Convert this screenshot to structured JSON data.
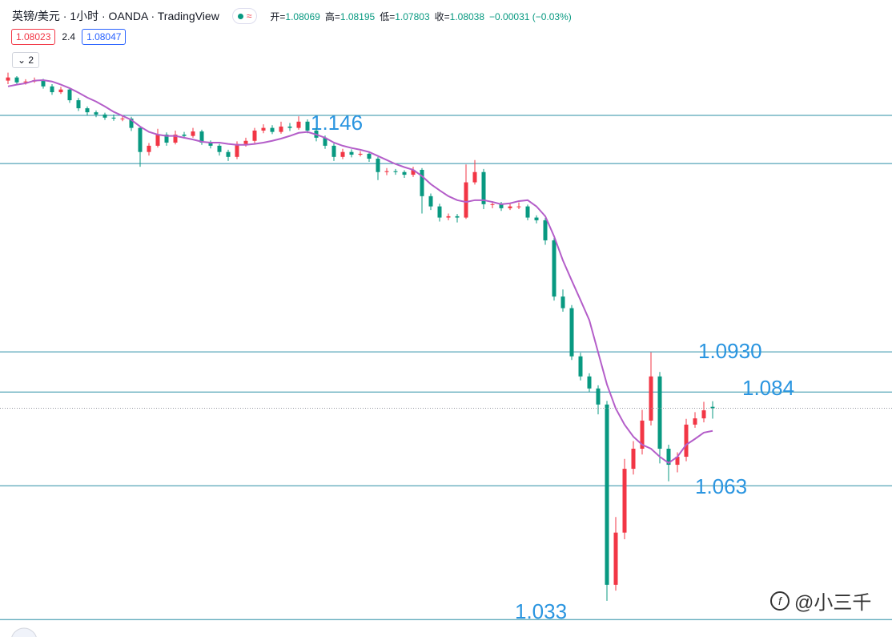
{
  "header": {
    "symbol": "英镑/美元 · 1小时 · OANDA · TradingView",
    "ohlc": [
      {
        "label": "开=",
        "value": "1.08069"
      },
      {
        "label": "高=",
        "value": "1.08195"
      },
      {
        "label": "低=",
        "value": "1.07803"
      },
      {
        "label": "收=",
        "value": "1.08038"
      }
    ],
    "change": "−0.00031 (−0.03%)",
    "bid": "1.08023",
    "spread": "2.4",
    "ask": "1.08047",
    "collapse_count": "2"
  },
  "watermark": "@小三千",
  "chart_data": {
    "type": "candlestick",
    "up_color": "#f23645",
    "down_color": "#089981",
    "ylim": [
      1.0291,
      1.1566
    ],
    "ohlc": [
      [
        1.1538,
        1.1556,
        1.153,
        1.1545
      ],
      [
        1.1545,
        1.1548,
        1.1528,
        1.1534
      ],
      [
        1.1534,
        1.1541,
        1.1529,
        1.1536
      ],
      [
        1.1536,
        1.1545,
        1.1533,
        1.1539
      ],
      [
        1.1539,
        1.1542,
        1.152,
        1.1525
      ],
      [
        1.1525,
        1.153,
        1.1506,
        1.1512
      ],
      [
        1.1512,
        1.1524,
        1.1508,
        1.1518
      ],
      [
        1.1518,
        1.1521,
        1.1488,
        1.1494
      ],
      [
        1.1494,
        1.1499,
        1.147,
        1.1476
      ],
      [
        1.1476,
        1.148,
        1.146,
        1.1467
      ],
      [
        1.1467,
        1.1471,
        1.1456,
        1.1462
      ],
      [
        1.1462,
        1.1466,
        1.145,
        1.1455
      ],
      [
        1.1455,
        1.1462,
        1.1448,
        1.1453
      ],
      [
        1.1453,
        1.146,
        1.1447,
        1.1453
      ],
      [
        1.1453,
        1.1457,
        1.1425,
        1.1432
      ],
      [
        1.1432,
        1.1436,
        1.1345,
        1.1378
      ],
      [
        1.1378,
        1.1398,
        1.137,
        1.1392
      ],
      [
        1.1392,
        1.143,
        1.1388,
        1.1417
      ],
      [
        1.1417,
        1.1422,
        1.1392,
        1.1399
      ],
      [
        1.1399,
        1.1426,
        1.1395,
        1.1417
      ],
      [
        1.1417,
        1.1423,
        1.1408,
        1.1414
      ],
      [
        1.1414,
        1.1432,
        1.141,
        1.1424
      ],
      [
        1.1424,
        1.1428,
        1.1394,
        1.1399
      ],
      [
        1.1399,
        1.1404,
        1.1386,
        1.1392
      ],
      [
        1.1392,
        1.1396,
        1.137,
        1.1378
      ],
      [
        1.1378,
        1.1383,
        1.1358,
        1.1367
      ],
      [
        1.1367,
        1.1402,
        1.1362,
        1.1396
      ],
      [
        1.1396,
        1.141,
        1.139,
        1.1403
      ],
      [
        1.1403,
        1.1432,
        1.1398,
        1.1426
      ],
      [
        1.1426,
        1.144,
        1.142,
        1.1432
      ],
      [
        1.1432,
        1.1438,
        1.1418,
        1.1423
      ],
      [
        1.1423,
        1.1446,
        1.1419,
        1.1435
      ],
      [
        1.1435,
        1.1443,
        1.1425,
        1.1432
      ],
      [
        1.1432,
        1.1458,
        1.1428,
        1.1446
      ],
      [
        1.1446,
        1.1451,
        1.142,
        1.1426
      ],
      [
        1.1426,
        1.1432,
        1.1402,
        1.141
      ],
      [
        1.141,
        1.1415,
        1.1385,
        1.1392
      ],
      [
        1.1392,
        1.1397,
        1.1358,
        1.1367
      ],
      [
        1.1367,
        1.1385,
        1.1362,
        1.1378
      ],
      [
        1.1378,
        1.1384,
        1.1366,
        1.1372
      ],
      [
        1.1372,
        1.138,
        1.1368,
        1.1374
      ],
      [
        1.1374,
        1.1378,
        1.1356,
        1.1363
      ],
      [
        1.1363,
        1.1367,
        1.1315,
        1.1333
      ],
      [
        1.1333,
        1.1342,
        1.1326,
        1.1335
      ],
      [
        1.1335,
        1.134,
        1.1327,
        1.1333
      ],
      [
        1.1333,
        1.1337,
        1.132,
        1.1327
      ],
      [
        1.1327,
        1.1345,
        1.1322,
        1.1338
      ],
      [
        1.1338,
        1.1342,
        1.124,
        1.1279
      ],
      [
        1.1279,
        1.1285,
        1.1248,
        1.1256
      ],
      [
        1.1256,
        1.1262,
        1.1222,
        1.1231
      ],
      [
        1.1231,
        1.124,
        1.1225,
        1.1234
      ],
      [
        1.1234,
        1.1239,
        1.122,
        1.1231
      ],
      [
        1.1231,
        1.135,
        1.1228,
        1.131
      ],
      [
        1.131,
        1.136,
        1.1305,
        1.1333
      ],
      [
        1.1333,
        1.134,
        1.125,
        1.1261
      ],
      [
        1.1261,
        1.1268,
        1.1252,
        1.1261
      ],
      [
        1.1261,
        1.1266,
        1.1246,
        1.1252
      ],
      [
        1.1252,
        1.1262,
        1.1248,
        1.1256
      ],
      [
        1.1256,
        1.1265,
        1.125,
        1.1256
      ],
      [
        1.1256,
        1.126,
        1.1225,
        1.1231
      ],
      [
        1.1231,
        1.1236,
        1.1218,
        1.1225
      ],
      [
        1.1225,
        1.123,
        1.117,
        1.118
      ],
      [
        1.118,
        1.1185,
        1.1045,
        1.1054
      ],
      [
        1.1054,
        1.107,
        1.102,
        1.1028
      ],
      [
        1.1028,
        1.1035,
        1.0912,
        1.092
      ],
      [
        1.092,
        1.0928,
        1.0866,
        1.0875
      ],
      [
        1.0875,
        1.0882,
        1.084,
        1.0848
      ],
      [
        1.0848,
        1.0855,
        1.079,
        1.0812
      ],
      [
        1.0812,
        1.082,
        1.0372,
        1.0408
      ],
      [
        1.0408,
        1.056,
        1.0395,
        1.0525
      ],
      [
        1.0525,
        1.069,
        1.051,
        1.0668
      ],
      [
        1.0668,
        1.073,
        1.0655,
        1.0713
      ],
      [
        1.0713,
        1.08,
        1.07,
        1.0776
      ],
      [
        1.0776,
        1.0929,
        1.0765,
        1.0875
      ],
      [
        1.0875,
        1.0885,
        1.068,
        1.0713
      ],
      [
        1.0713,
        1.0722,
        1.064,
        1.0677
      ],
      [
        1.0677,
        1.0705,
        1.066,
        1.0695
      ],
      [
        1.0695,
        1.078,
        1.0685,
        1.0767
      ],
      [
        1.0767,
        1.0795,
        1.076,
        1.0781
      ],
      [
        1.0781,
        1.0818,
        1.0772,
        1.0799
      ],
      [
        1.08069,
        1.08195,
        1.07803,
        1.08038
      ]
    ],
    "ma": {
      "color": "#b45ec9",
      "values": [
        1.1525,
        1.1529,
        1.1532,
        1.1538,
        1.1539,
        1.1536,
        1.1529,
        1.1521,
        1.1511,
        1.15,
        1.1491,
        1.148,
        1.1468,
        1.1459,
        1.145,
        1.1435,
        1.1423,
        1.1417,
        1.1414,
        1.1414,
        1.141,
        1.1406,
        1.1401,
        1.1399,
        1.1399,
        1.1396,
        1.1394,
        1.1394,
        1.1396,
        1.1399,
        1.1403,
        1.1408,
        1.1414,
        1.1421,
        1.1423,
        1.1417,
        1.141,
        1.1399,
        1.1392,
        1.1387,
        1.1383,
        1.1378,
        1.1369,
        1.136,
        1.1351,
        1.1344,
        1.1338,
        1.1324,
        1.1306,
        1.1292,
        1.1279,
        1.127,
        1.1266,
        1.127,
        1.127,
        1.1266,
        1.1261,
        1.1263,
        1.1268,
        1.127,
        1.1256,
        1.1234,
        1.1189,
        1.1135,
        1.109,
        1.1046,
        1.1001,
        1.0929,
        1.0857,
        1.0803,
        1.0767,
        1.074,
        1.0722,
        1.0713,
        1.0695,
        1.0681,
        1.0695,
        1.0722,
        1.0735,
        1.0749,
        1.0753
      ]
    },
    "levels": [
      {
        "value": 1.146,
        "label": "1.146"
      },
      {
        "value": 1.1352
      },
      {
        "value": 1.093,
        "label": "1.0930"
      },
      {
        "value": 1.084,
        "label": "1.084"
      },
      {
        "value": 1.063,
        "label": "1.063"
      },
      {
        "value": 1.033,
        "label": "1.033"
      }
    ],
    "level_color": "#2b8fa6",
    "label_color": "#2a95e0"
  }
}
